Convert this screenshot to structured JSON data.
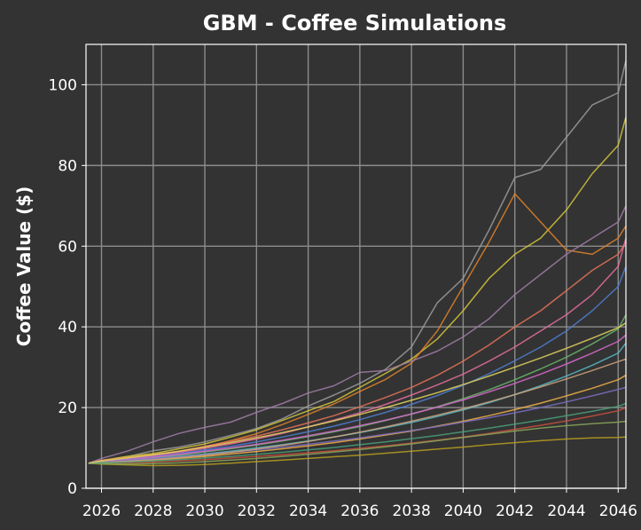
{
  "chart_data": {
    "type": "line",
    "title": "GBM - Coffee Simulations",
    "xlabel": "",
    "ylabel": "Coffee Value ($)",
    "xlim": [
      2025.4,
      2046.3
    ],
    "ylim": [
      0,
      110
    ],
    "x_ticks": [
      "2026",
      "2028",
      "2030",
      "2032",
      "2034",
      "2036",
      "2038",
      "2040",
      "2042",
      "2044",
      "2046"
    ],
    "y_ticks": [
      "0",
      "20",
      "40",
      "60",
      "80",
      "100"
    ],
    "grid": true,
    "legend": "none",
    "x": [
      2025.5,
      2026,
      2027,
      2028,
      2029,
      2030,
      2031,
      2032,
      2033,
      2034,
      2035,
      2036,
      2037,
      2038,
      2039,
      2040,
      2041,
      2042,
      2043,
      2044,
      2045,
      2046,
      2046.3
    ],
    "series": [
      {
        "color": "#9e9e9e",
        "values": [
          6.2,
          6.8,
          7.8,
          9.3,
          10.2,
          11.5,
          13.1,
          14.8,
          17.2,
          20.4,
          23.1,
          26.0,
          29.5,
          35.0,
          46.0,
          52.0,
          64.0,
          77.0,
          79.0,
          87.0,
          95.0,
          98.0,
          106.0
        ]
      },
      {
        "color": "#d4c83a",
        "values": [
          6.2,
          6.9,
          7.9,
          8.6,
          9.8,
          11.0,
          12.7,
          14.5,
          16.8,
          19.2,
          21.5,
          25.0,
          28.5,
          32.0,
          37.0,
          44.0,
          52.0,
          58.0,
          62.0,
          69.0,
          78.0,
          85.0,
          92.0
        ]
      },
      {
        "color": "#e0822a",
        "values": [
          6.2,
          6.6,
          7.4,
          8.2,
          9.1,
          10.3,
          11.8,
          13.5,
          15.8,
          18.3,
          20.9,
          24.0,
          27.0,
          31.0,
          39.0,
          50.0,
          61.0,
          73.0,
          66.0,
          59.0,
          58.0,
          62.0,
          65.0
        ]
      },
      {
        "color": "#a17ca8",
        "values": [
          6.2,
          7.4,
          9.2,
          11.5,
          13.6,
          15.1,
          16.4,
          18.8,
          21.0,
          23.6,
          25.4,
          28.7,
          29.2,
          31.5,
          34.0,
          37.5,
          42.0,
          48.0,
          53.0,
          58.0,
          62.0,
          66.0,
          70.0
        ]
      },
      {
        "color": "#e8735a",
        "values": [
          6.2,
          6.9,
          7.6,
          8.3,
          9.2,
          10.4,
          11.6,
          12.9,
          14.5,
          16.2,
          18.0,
          20.2,
          22.5,
          25.0,
          28.0,
          31.5,
          35.5,
          40.0,
          44.0,
          49.0,
          54.0,
          58.0,
          61.0
        ]
      },
      {
        "color": "#e86ea0",
        "values": [
          6.2,
          6.7,
          7.3,
          8.1,
          8.9,
          9.9,
          11.0,
          12.2,
          13.6,
          15.2,
          16.9,
          18.7,
          20.8,
          23.1,
          25.6,
          28.3,
          31.5,
          35.0,
          39.0,
          43.0,
          48.0,
          55.0,
          62.0
        ]
      },
      {
        "color": "#4f7fd1",
        "values": [
          6.2,
          6.6,
          7.2,
          7.8,
          8.6,
          9.5,
          10.4,
          11.5,
          12.7,
          14.0,
          15.4,
          17.0,
          18.8,
          20.8,
          23.0,
          25.5,
          28.4,
          31.6,
          35.0,
          39.0,
          44.0,
          50.0,
          55.0
        ]
      },
      {
        "color": "#6ab66a",
        "values": [
          6.2,
          6.5,
          7.0,
          7.6,
          8.2,
          9.0,
          9.8,
          10.7,
          11.7,
          12.8,
          14.0,
          15.3,
          16.8,
          18.4,
          20.2,
          22.2,
          24.4,
          26.9,
          29.6,
          32.5,
          35.8,
          39.5,
          43.0
        ]
      },
      {
        "color": "#58b7c4",
        "values": [
          6.2,
          6.4,
          6.8,
          7.3,
          7.9,
          8.5,
          9.2,
          10.0,
          10.8,
          11.7,
          12.7,
          13.8,
          15.0,
          16.3,
          17.8,
          19.4,
          21.2,
          23.2,
          25.4,
          27.8,
          30.5,
          33.5,
          36.0
        ]
      },
      {
        "color": "#f2b04a",
        "values": [
          6.2,
          6.3,
          6.6,
          6.9,
          7.4,
          7.9,
          8.5,
          9.1,
          9.8,
          10.5,
          11.3,
          12.2,
          13.2,
          14.2,
          15.4,
          16.6,
          18.0,
          19.5,
          21.1,
          22.9,
          24.8,
          26.9,
          28.0
        ]
      },
      {
        "color": "#c9503c",
        "values": [
          6.2,
          6.2,
          6.3,
          6.5,
          6.8,
          7.1,
          7.5,
          7.9,
          8.3,
          8.8,
          9.3,
          9.9,
          10.5,
          11.2,
          11.9,
          12.7,
          13.6,
          14.6,
          15.6,
          16.7,
          17.9,
          19.2,
          20.0
        ]
      },
      {
        "color": "#b8a020",
        "values": [
          6.2,
          6.0,
          5.8,
          5.6,
          5.7,
          5.9,
          6.2,
          6.6,
          7.0,
          7.4,
          7.8,
          8.2,
          8.7,
          9.2,
          9.7,
          10.2,
          10.8,
          11.3,
          11.8,
          12.2,
          12.5,
          12.6,
          12.7
        ]
      },
      {
        "color": "#8aa85a",
        "values": [
          6.2,
          6.1,
          6.0,
          6.1,
          6.3,
          6.6,
          7.0,
          7.4,
          7.9,
          8.4,
          9.0,
          9.6,
          10.3,
          11.0,
          11.8,
          12.6,
          13.4,
          14.2,
          14.9,
          15.5,
          16.0,
          16.4,
          16.6
        ]
      },
      {
        "color": "#d96ad0",
        "values": [
          6.2,
          6.6,
          7.1,
          7.7,
          8.4,
          9.2,
          10.0,
          10.9,
          11.9,
          13.0,
          14.2,
          15.5,
          16.9,
          18.4,
          20.1,
          21.9,
          23.9,
          26.0,
          28.3,
          30.8,
          33.5,
          36.4,
          38.0
        ]
      },
      {
        "color": "#7a6fc2",
        "values": [
          6.2,
          6.5,
          6.9,
          7.3,
          7.8,
          8.3,
          8.9,
          9.5,
          10.2,
          10.9,
          11.7,
          12.5,
          13.4,
          14.3,
          15.3,
          16.4,
          17.5,
          18.7,
          20.0,
          21.4,
          22.9,
          24.5,
          25.0
        ]
      },
      {
        "color": "#cfa37e",
        "values": [
          6.2,
          6.4,
          6.7,
          7.1,
          7.6,
          8.2,
          8.9,
          9.7,
          10.6,
          11.6,
          12.7,
          13.9,
          15.2,
          16.6,
          18.1,
          19.7,
          21.4,
          23.2,
          25.1,
          27.1,
          29.2,
          31.4,
          32.0
        ]
      },
      {
        "color": "#4aa07a",
        "values": [
          6.2,
          6.3,
          6.5,
          6.8,
          7.1,
          7.5,
          7.9,
          8.4,
          8.9,
          9.5,
          10.1,
          10.8,
          11.5,
          12.3,
          13.1,
          14.0,
          14.9,
          15.9,
          16.9,
          18.0,
          19.1,
          20.3,
          21.0
        ]
      },
      {
        "color": "#e2d35e",
        "values": [
          6.2,
          6.8,
          7.5,
          8.3,
          9.2,
          10.2,
          11.3,
          12.5,
          13.8,
          15.2,
          16.7,
          18.3,
          20.0,
          21.8,
          23.7,
          25.7,
          27.8,
          30.0,
          32.3,
          34.7,
          37.2,
          39.8,
          41.0
        ]
      }
    ]
  }
}
